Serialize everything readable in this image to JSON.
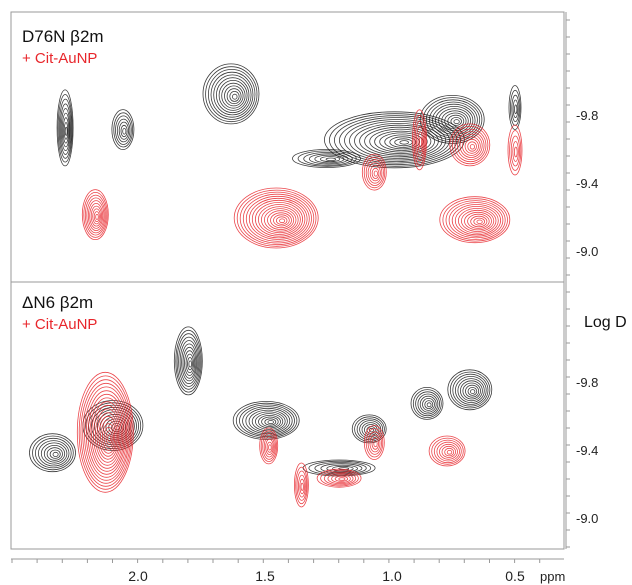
{
  "chart_data": {
    "type": "scatter",
    "subtype": "2D DOSY NMR contour plot",
    "x_axis": {
      "label": "ppm",
      "ticks": [
        "2.0",
        "1.5",
        "1.0",
        "0.5"
      ],
      "range": [
        2.5,
        0.3
      ],
      "reversed": true
    },
    "y_axis": {
      "label": "Log D",
      "ticks": [
        "-9.8",
        "-9.4",
        "-9.0"
      ],
      "range": [
        -8.85,
        -10.1
      ]
    },
    "colors": {
      "protein": "#1a1a1a",
      "nanoparticle": "#e8262b"
    },
    "panels": [
      {
        "id": "top",
        "label_line1": "D76N β2m",
        "label_line2": "+ Cit-AuNP",
        "series": [
          {
            "color_key": "protein",
            "peaks": [
              {
                "x": 2.29,
                "y": -9.73
              },
              {
                "x": 2.06,
                "y": -9.72
              },
              {
                "x": 1.63,
                "y": -9.93
              },
              {
                "x": 1.25,
                "y": -9.55
              },
              {
                "x": 0.98,
                "y": -9.66
              },
              {
                "x": 0.75,
                "y": -9.78
              },
              {
                "x": 0.5,
                "y": -9.85
              }
            ]
          },
          {
            "color_key": "nanoparticle",
            "peaks": [
              {
                "x": 2.17,
                "y": -9.22
              },
              {
                "x": 1.45,
                "y": -9.2
              },
              {
                "x": 1.06,
                "y": -9.47
              },
              {
                "x": 0.88,
                "y": -9.66
              },
              {
                "x": 0.66,
                "y": -9.19
              },
              {
                "x": 0.68,
                "y": -9.63
              },
              {
                "x": 0.5,
                "y": -9.6
              }
            ]
          }
        ]
      },
      {
        "id": "bottom",
        "label_line1": "ΔN6 β2m",
        "label_line2": "+ Cit-AuNP",
        "series": [
          {
            "color_key": "protein",
            "peaks": [
              {
                "x": 2.34,
                "y": -9.39
              },
              {
                "x": 2.1,
                "y": -9.55
              },
              {
                "x": 1.8,
                "y": -9.93
              },
              {
                "x": 1.49,
                "y": -9.58
              },
              {
                "x": 1.2,
                "y": -9.3
              },
              {
                "x": 1.08,
                "y": -9.53
              },
              {
                "x": 0.85,
                "y": -9.68
              },
              {
                "x": 0.68,
                "y": -9.76
              }
            ]
          },
          {
            "color_key": "nanoparticle",
            "peaks": [
              {
                "x": 2.13,
                "y": -9.51
              },
              {
                "x": 1.48,
                "y": -9.43
              },
              {
                "x": 1.35,
                "y": -9.2
              },
              {
                "x": 1.2,
                "y": -9.24
              },
              {
                "x": 1.06,
                "y": -9.45
              },
              {
                "x": 0.77,
                "y": -9.4
              }
            ]
          }
        ]
      }
    ]
  }
}
